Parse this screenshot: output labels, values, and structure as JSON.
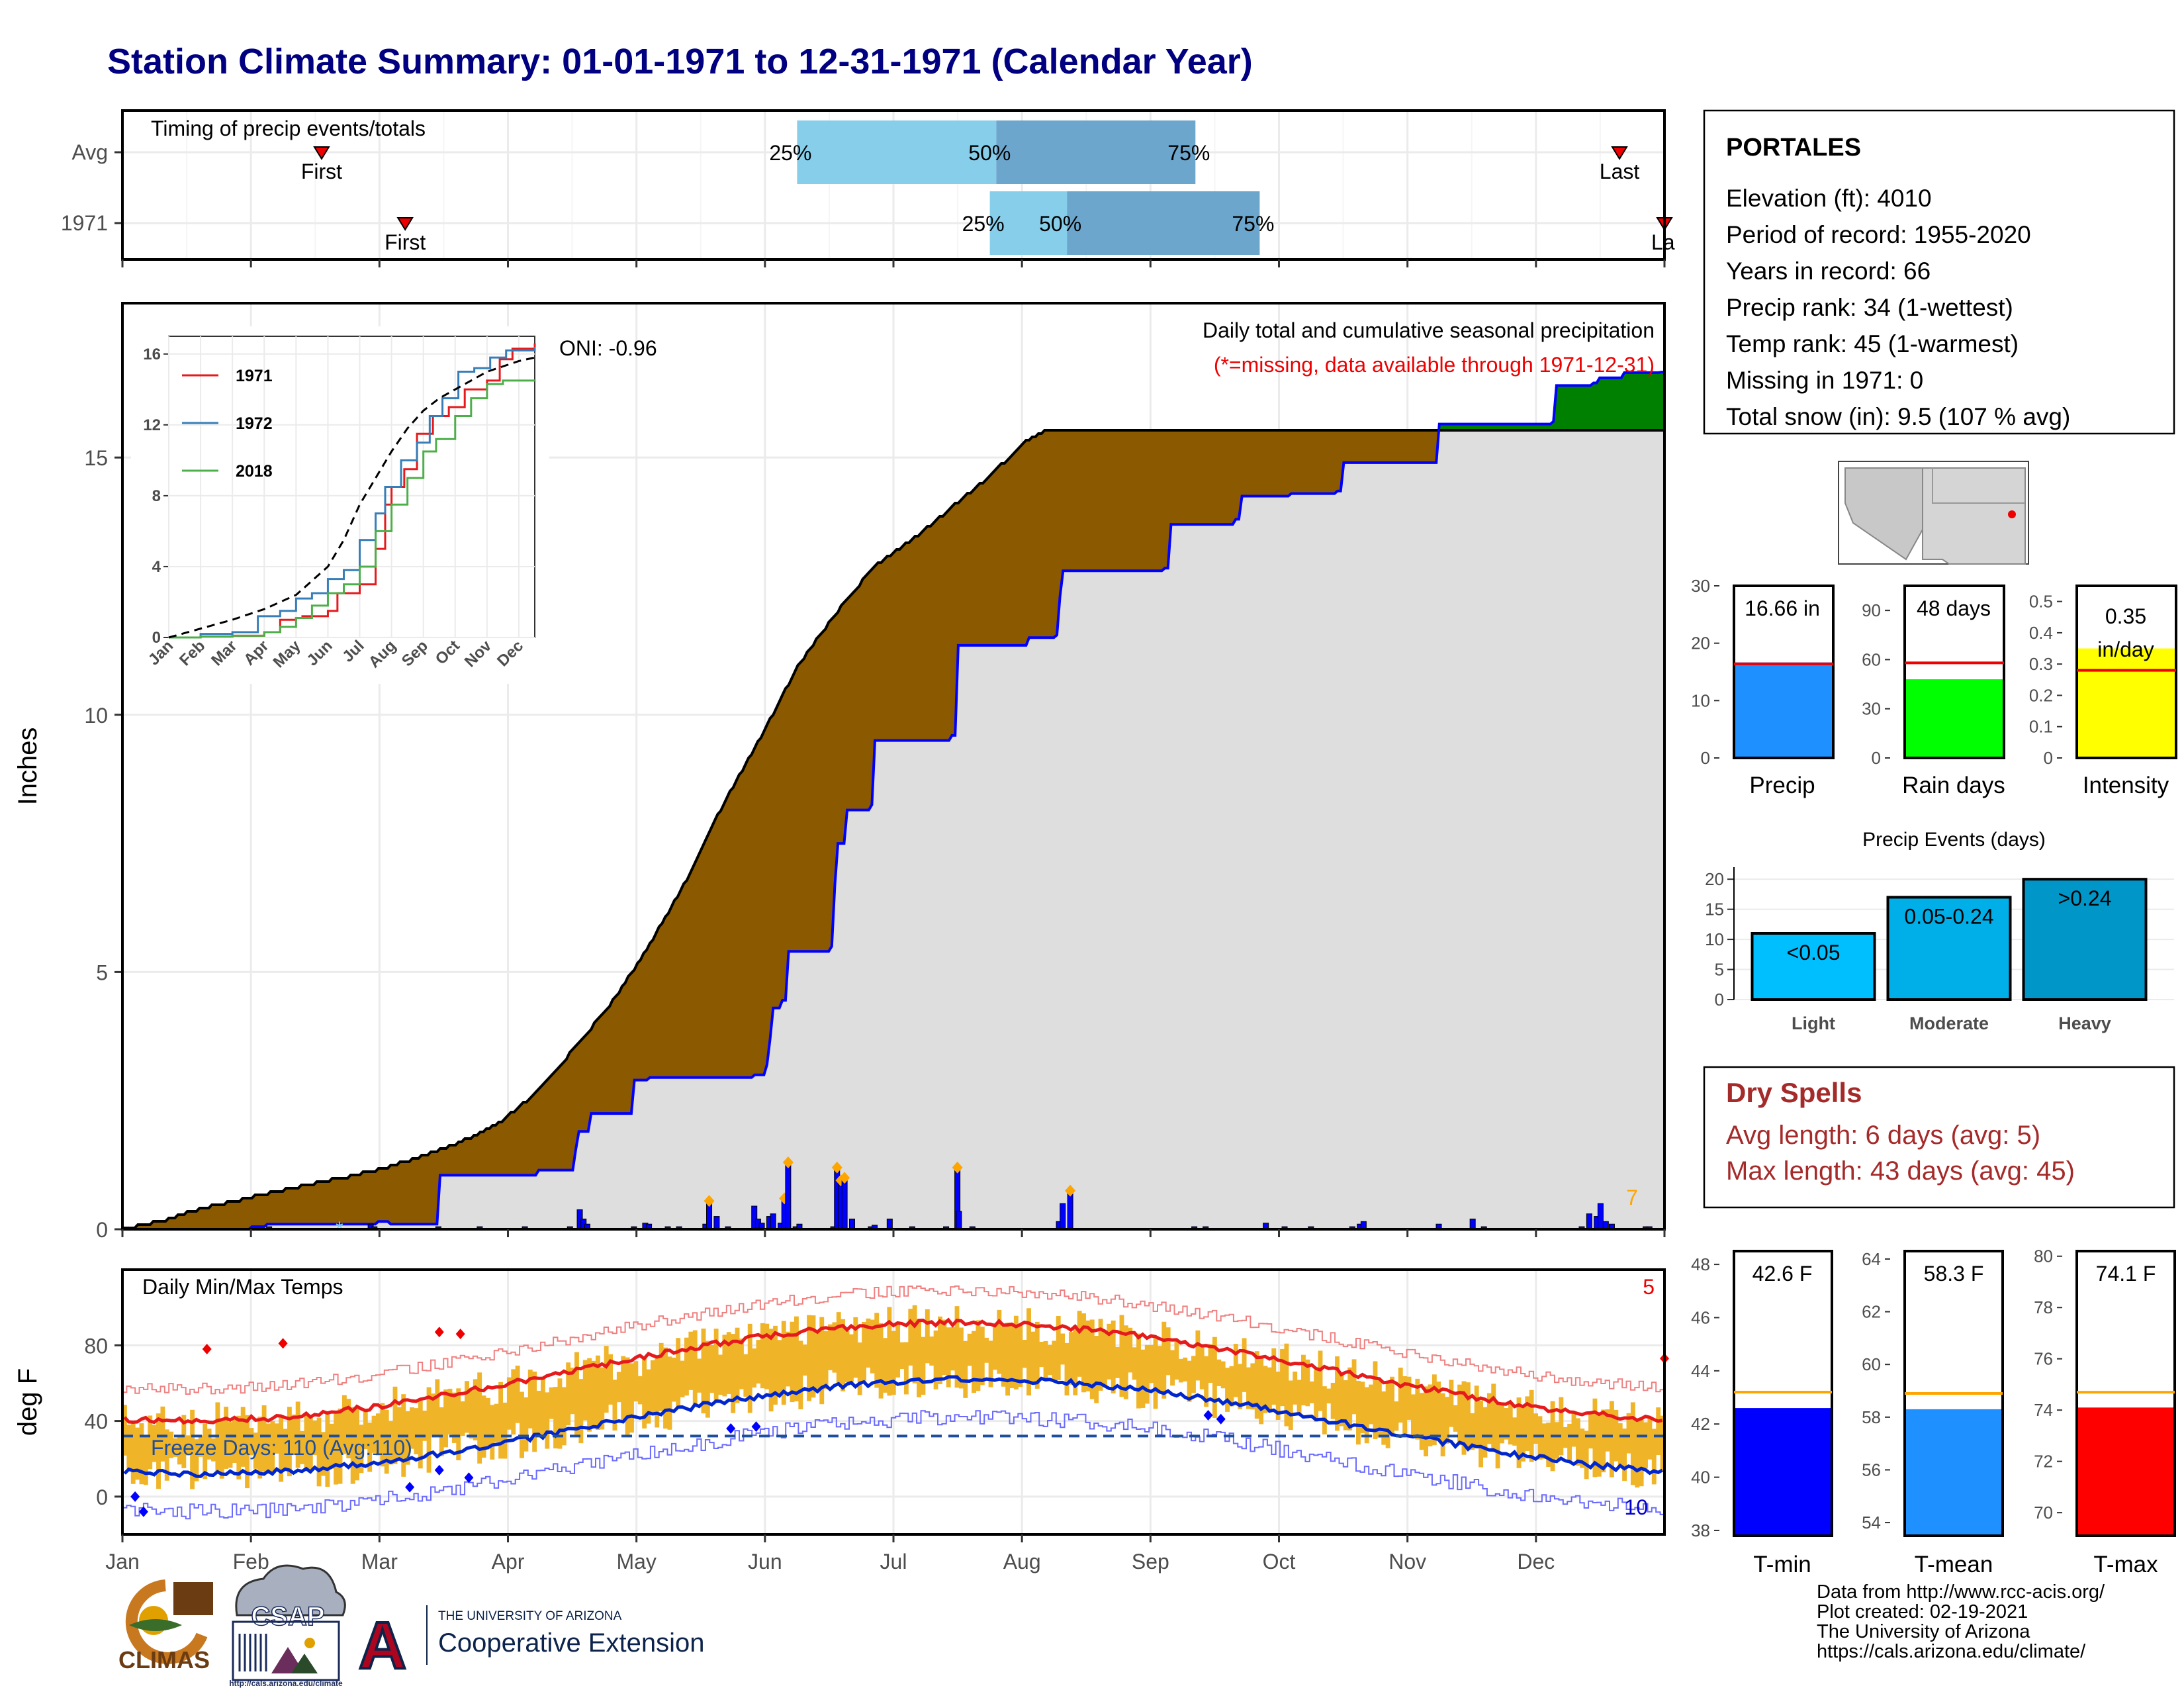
{
  "title": "Station Climate Summary: 01-01-1971 to 12-31-1971 (Calendar Year)",
  "timing": {
    "label": "Timing of precip events/totals",
    "rows": [
      {
        "name": "Avg",
        "first_month": 1.55,
        "q25": 5.25,
        "q50": 6.8,
        "q75": 8.35,
        "last_month": 11.65
      },
      {
        "name": "1971",
        "first_month": 2.2,
        "q25": 6.75,
        "q50": 7.35,
        "q75": 8.85,
        "last_month": 12.0
      }
    ],
    "first_label": "First",
    "last_label": "Last",
    "last_label_clipped": "La",
    "pct_labels": [
      "25%",
      "50%",
      "75%"
    ]
  },
  "precip": {
    "ylabel": "Inches",
    "yticks": [
      0,
      5,
      10,
      15
    ],
    "ylim": [
      0,
      18
    ],
    "caption": "Daily total and cumulative seasonal precipitation",
    "missing_note": "(*=missing, data available through 1971-12-31)",
    "oni": "ONI: -0.96",
    "count_label": "7",
    "avg_cumulative": [
      [
        0,
        0
      ],
      [
        0.5,
        0.15
      ],
      [
        1,
        0.38
      ],
      [
        1.5,
        0.55
      ],
      [
        2,
        0.72
      ],
      [
        2.5,
        0.88
      ],
      [
        3,
        1.02
      ],
      [
        3.5,
        1.2
      ],
      [
        4,
        1.42
      ],
      [
        4.5,
        1.7
      ],
      [
        5,
        2.05
      ],
      [
        5.5,
        2.65
      ],
      [
        6,
        3.5
      ],
      [
        6.5,
        4.4
      ],
      [
        7,
        5.5
      ],
      [
        7.5,
        6.8
      ],
      [
        8,
        8.3
      ],
      [
        8.5,
        9.6
      ],
      [
        9,
        11.0
      ],
      [
        9.5,
        12.0
      ],
      [
        10,
        12.9
      ],
      [
        10.5,
        13.4
      ],
      [
        11,
        14.0
      ],
      [
        11.5,
        14.6
      ],
      [
        12,
        15.3
      ],
      [
        12.3,
        15.55
      ]
    ],
    "ytd_1971": [
      [
        0,
        0
      ],
      [
        1.7,
        0.05
      ],
      [
        1.9,
        0.1
      ],
      [
        3.4,
        0.15
      ],
      [
        3.55,
        0.1
      ],
      [
        4.2,
        1.05
      ],
      [
        5.5,
        1.15
      ],
      [
        6,
        1.55
      ],
      [
        6.05,
        1.9
      ],
      [
        6.2,
        2.25
      ],
      [
        6.8,
        2.9
      ],
      [
        7,
        2.95
      ],
      [
        8.2,
        2.95
      ],
      [
        8.4,
        3.0
      ],
      [
        8.55,
        3.2
      ],
      [
        8.6,
        3.7
      ],
      [
        8.65,
        4.3
      ],
      [
        8.75,
        4.45
      ],
      [
        8.85,
        5.4
      ],
      [
        9.4,
        5.5
      ],
      [
        9.45,
        6.7
      ],
      [
        9.5,
        7.5
      ],
      [
        9.6,
        8.15
      ],
      [
        9.95,
        8.25
      ],
      [
        10,
        9.5
      ],
      [
        11.0,
        9.6
      ],
      [
        11.1,
        11.35
      ],
      [
        12.05,
        11.5
      ],
      [
        12.4,
        11.55
      ],
      [
        12.45,
        12.3
      ],
      [
        12.5,
        12.8
      ],
      [
        13.85,
        12.85
      ],
      [
        13.9,
        13.7
      ],
      [
        14.8,
        13.8
      ],
      [
        14.85,
        14.25
      ],
      [
        15.5,
        14.3
      ],
      [
        16.15,
        14.35
      ],
      [
        16.2,
        14.9
      ],
      [
        17.5,
        15.0
      ],
      [
        17.5,
        15.65
      ],
      [
        19.0,
        15.7
      ],
      [
        19.05,
        16.4
      ],
      [
        19.55,
        16.45
      ],
      [
        19.6,
        16.55
      ],
      [
        19.95,
        16.6
      ],
      [
        19.95,
        16.65
      ],
      [
        20.45,
        16.66
      ]
    ],
    "daily_bars": [
      [
        1.95,
        0.05
      ],
      [
        3.3,
        0.1
      ],
      [
        3.35,
        0.05
      ],
      [
        4.2,
        0.05
      ],
      [
        4.75,
        0.05
      ],
      [
        5.35,
        0.05
      ],
      [
        5.95,
        0.05
      ],
      [
        6.08,
        0.38
      ],
      [
        6.13,
        0.2
      ],
      [
        6.18,
        0.1
      ],
      [
        6.8,
        0.05
      ],
      [
        6.95,
        0.12
      ],
      [
        7.0,
        0.1
      ],
      [
        7.25,
        0.05
      ],
      [
        7.4,
        0.05
      ],
      [
        7.75,
        0.1
      ],
      [
        7.8,
        0.55
      ],
      [
        7.9,
        0.25
      ],
      [
        8.05,
        0.05
      ],
      [
        8.4,
        0.45
      ],
      [
        8.45,
        0.2
      ],
      [
        8.5,
        0.12
      ],
      [
        8.6,
        0.25
      ],
      [
        8.65,
        0.3
      ],
      [
        8.75,
        0.12
      ],
      [
        8.8,
        0.6
      ],
      [
        8.85,
        1.3
      ],
      [
        8.95,
        0.05
      ],
      [
        9.0,
        0.1
      ],
      [
        9.45,
        0.05
      ],
      [
        9.5,
        1.2
      ],
      [
        9.55,
        0.95
      ],
      [
        9.6,
        1.0
      ],
      [
        9.7,
        0.2
      ],
      [
        9.95,
        0.05
      ],
      [
        10.0,
        0.08
      ],
      [
        10.2,
        0.2
      ],
      [
        10.5,
        0.05
      ],
      [
        10.95,
        0.05
      ],
      [
        11.1,
        1.2
      ],
      [
        11.12,
        0.35
      ],
      [
        11.3,
        0.05
      ],
      [
        12.45,
        0.15
      ],
      [
        12.5,
        0.5
      ],
      [
        12.6,
        0.75
      ],
      [
        14.25,
        0.05
      ],
      [
        14.4,
        0.05
      ],
      [
        15.2,
        0.12
      ],
      [
        15.45,
        0.05
      ],
      [
        15.8,
        0.05
      ],
      [
        16.35,
        0.05
      ],
      [
        16.45,
        0.1
      ],
      [
        16.5,
        0.15
      ],
      [
        17.5,
        0.1
      ],
      [
        17.95,
        0.2
      ],
      [
        18.1,
        0.05
      ],
      [
        19.4,
        0.05
      ],
      [
        19.5,
        0.3
      ],
      [
        19.6,
        0.25
      ],
      [
        19.65,
        0.5
      ],
      [
        19.72,
        0.15
      ],
      [
        19.8,
        0.1
      ],
      [
        20.25,
        0.05
      ],
      [
        20.3,
        0.05
      ]
    ],
    "inset": {
      "yticks": [
        0,
        4,
        8,
        12,
        16
      ],
      "months": [
        "Jan",
        "Feb",
        "Mar",
        "Apr",
        "May",
        "Jun",
        "Jul",
        "Aug",
        "Sep",
        "Oct",
        "Nov",
        "Dec"
      ],
      "series": [
        {
          "name": "1971",
          "color": "#e41a1c",
          "points": [
            [
              0,
              0
            ],
            [
              1,
              0.05
            ],
            [
              2,
              0.1
            ],
            [
              3,
              0.3
            ],
            [
              3.5,
              1.0
            ],
            [
              4,
              1.1
            ],
            [
              4.2,
              1.2
            ],
            [
              5,
              1.5
            ],
            [
              5.3,
              2.5
            ],
            [
              6,
              3.0
            ],
            [
              6.5,
              5.0
            ],
            [
              6.8,
              7.5
            ],
            [
              7,
              8.5
            ],
            [
              7.4,
              9.5
            ],
            [
              7.8,
              11.5
            ],
            [
              8.3,
              12.5
            ],
            [
              8.8,
              13.0
            ],
            [
              9.3,
              14.0
            ],
            [
              10,
              14.5
            ],
            [
              10.4,
              15.7
            ],
            [
              10.8,
              16.3
            ],
            [
              11.5,
              16.6
            ]
          ]
        },
        {
          "name": "1972",
          "color": "#377eb8",
          "points": [
            [
              0,
              0
            ],
            [
              1,
              0.2
            ],
            [
              2,
              0.3
            ],
            [
              2.8,
              1.2
            ],
            [
              3.5,
              1.5
            ],
            [
              4,
              2.2
            ],
            [
              4.5,
              2.5
            ],
            [
              5,
              3.3
            ],
            [
              5.5,
              3.8
            ],
            [
              6,
              5.5
            ],
            [
              6.5,
              7.0
            ],
            [
              6.8,
              8.5
            ],
            [
              7.3,
              10.0
            ],
            [
              7.8,
              11.0
            ],
            [
              8.2,
              12.5
            ],
            [
              8.6,
              13.5
            ],
            [
              9.1,
              15.0
            ],
            [
              9.6,
              15.2
            ],
            [
              10.1,
              15.8
            ],
            [
              10.6,
              16.2
            ],
            [
              11.5,
              16.4
            ]
          ]
        },
        {
          "name": "2018",
          "color": "#4daf4a",
          "points": [
            [
              0,
              0
            ],
            [
              1,
              0.05
            ],
            [
              2,
              0.1
            ],
            [
              3,
              0.3
            ],
            [
              3.5,
              0.6
            ],
            [
              4,
              1.1
            ],
            [
              4.5,
              1.8
            ],
            [
              5,
              2.5
            ],
            [
              5.5,
              3.0
            ],
            [
              6,
              4.0
            ],
            [
              6.5,
              6.0
            ],
            [
              7.0,
              7.5
            ],
            [
              7.5,
              9.0
            ],
            [
              8,
              10.5
            ],
            [
              8.4,
              11.2
            ],
            [
              9,
              12.5
            ],
            [
              9.5,
              13.5
            ],
            [
              10,
              14.3
            ],
            [
              10.5,
              14.5
            ],
            [
              11.5,
              14.5
            ]
          ]
        }
      ],
      "avg_points": [
        [
          0,
          0
        ],
        [
          1,
          0.5
        ],
        [
          2,
          1.0
        ],
        [
          3,
          1.6
        ],
        [
          4,
          2.4
        ],
        [
          5,
          4.0
        ],
        [
          5.5,
          5.5
        ],
        [
          6,
          7.5
        ],
        [
          6.5,
          9.0
        ],
        [
          7,
          10.5
        ],
        [
          7.5,
          11.8
        ],
        [
          8,
          12.8
        ],
        [
          8.5,
          13.5
        ],
        [
          9,
          14.0
        ],
        [
          9.5,
          14.5
        ],
        [
          10,
          15.0
        ],
        [
          10.5,
          15.3
        ],
        [
          11,
          15.6
        ],
        [
          11.5,
          15.8
        ]
      ]
    }
  },
  "temps": {
    "ylabel": "deg F",
    "yticks": [
      0,
      40,
      80
    ],
    "label": "Daily Min/Max Temps",
    "freeze_label": "Freeze Days: 110 (Avg:110)",
    "count_top": "5",
    "count_bottom": "10",
    "colors": {
      "bar": "#f0b429",
      "avg_max": "#e41a1c",
      "avg_min": "#0026cc",
      "freeze": "#1f4e9c"
    }
  },
  "months": [
    "Jan",
    "Feb",
    "Mar",
    "Apr",
    "May",
    "Jun",
    "Jul",
    "Aug",
    "Sep",
    "Oct",
    "Nov",
    "Dec"
  ],
  "station": {
    "name": "PORTALES",
    "lines": [
      "Elevation (ft): 4010",
      "Period of record: 1955-2020",
      "Years in record: 66",
      "Precip rank: 34 (1-wettest)",
      "Temp rank: 45 (1-warmest)",
      "Missing in 1971: 0",
      "Total snow (in): 9.5 (107 % avg)"
    ]
  },
  "summary_bars": [
    {
      "name": "Precip",
      "value": 16.66,
      "label": "16.66 in",
      "avg": 16.4,
      "ylim": [
        0,
        30
      ],
      "yticks": [
        0,
        10,
        20,
        30
      ],
      "color": "#1e90ff"
    },
    {
      "name": "Rain days",
      "value": 48,
      "label": "48 days",
      "avg": 58,
      "ylim": [
        0,
        105
      ],
      "yticks": [
        0,
        30,
        60,
        90
      ],
      "color": "#00ff00"
    },
    {
      "name": "Intensity",
      "value": 0.35,
      "label": "0.35 in/day",
      "avg": 0.28,
      "ylim": [
        0,
        0.55
      ],
      "yticks": [
        0.0,
        0.1,
        0.2,
        0.3,
        0.4,
        0.5
      ],
      "color": "#ffff00"
    }
  ],
  "precip_events": {
    "title": "Precip Events (days)",
    "yticks": [
      0,
      5,
      10,
      15,
      20
    ],
    "ylim": [
      0,
      22
    ],
    "bars": [
      {
        "name": "Light",
        "value": 11,
        "label": "<0.05",
        "color": "#00bfff"
      },
      {
        "name": "Moderate",
        "value": 17,
        "label": "0.05-0.24",
        "color": "#00aee8"
      },
      {
        "name": "Heavy",
        "value": 20,
        "label": ">0.24",
        "color": "#0096c8"
      }
    ]
  },
  "dry_spells": {
    "title": "Dry Spells",
    "avg_line": "Avg length: 6 days (avg: 5)",
    "max_line": "Max length: 43 days (avg: 45)"
  },
  "temp_bars": [
    {
      "name": "T-min",
      "value": 42.6,
      "label": "42.6 F",
      "avg": 43.2,
      "ylim": [
        37.8,
        48.5
      ],
      "yticks": [
        38,
        40,
        42,
        44,
        46,
        48
      ],
      "color": "#0000ff"
    },
    {
      "name": "T-mean",
      "value": 58.3,
      "label": "58.3 F",
      "avg": 58.9,
      "ylim": [
        53.5,
        64.3
      ],
      "yticks": [
        54,
        56,
        58,
        60,
        62,
        64
      ],
      "color": "#1e90ff"
    },
    {
      "name": "T-max",
      "value": 74.1,
      "label": "74.1 F",
      "avg": 74.7,
      "ylim": [
        69.1,
        80.2
      ],
      "yticks": [
        70,
        72,
        74,
        76,
        78,
        80
      ],
      "color": "#ff0000"
    }
  ],
  "footer": {
    "lines": [
      "Data from http://www.rcc-acis.org/",
      "Plot created: 02-19-2021",
      "The University of Arizona",
      "https://cals.arizona.edu/climate/"
    ],
    "climas": "CLIMAS",
    "csap": "CSAP",
    "csap_url": "http://cals.arizona.edu/climate",
    "ua_small": "THE UNIVERSITY OF ARIZONA",
    "ua_big": "Cooperative Extension",
    "ua_letter": "A"
  }
}
